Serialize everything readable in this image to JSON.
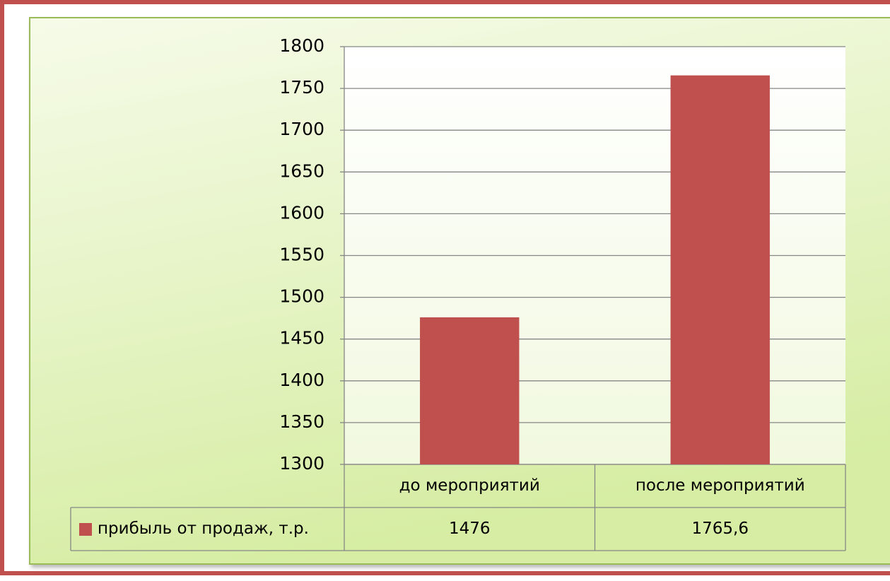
{
  "chart_data": {
    "type": "bar",
    "categories": [
      "до мероприятий",
      "после мероприятий"
    ],
    "series": [
      {
        "name": "прибыль от продаж, т.р.",
        "color": "#c0504d",
        "values": [
          1476,
          1765.6
        ],
        "value_labels": [
          "1476",
          "1765,6"
        ]
      }
    ],
    "ylim": [
      1300,
      1800
    ],
    "yticks": [
      1300,
      1350,
      1400,
      1450,
      1500,
      1550,
      1600,
      1650,
      1700,
      1750,
      1800
    ],
    "grid": true
  }
}
